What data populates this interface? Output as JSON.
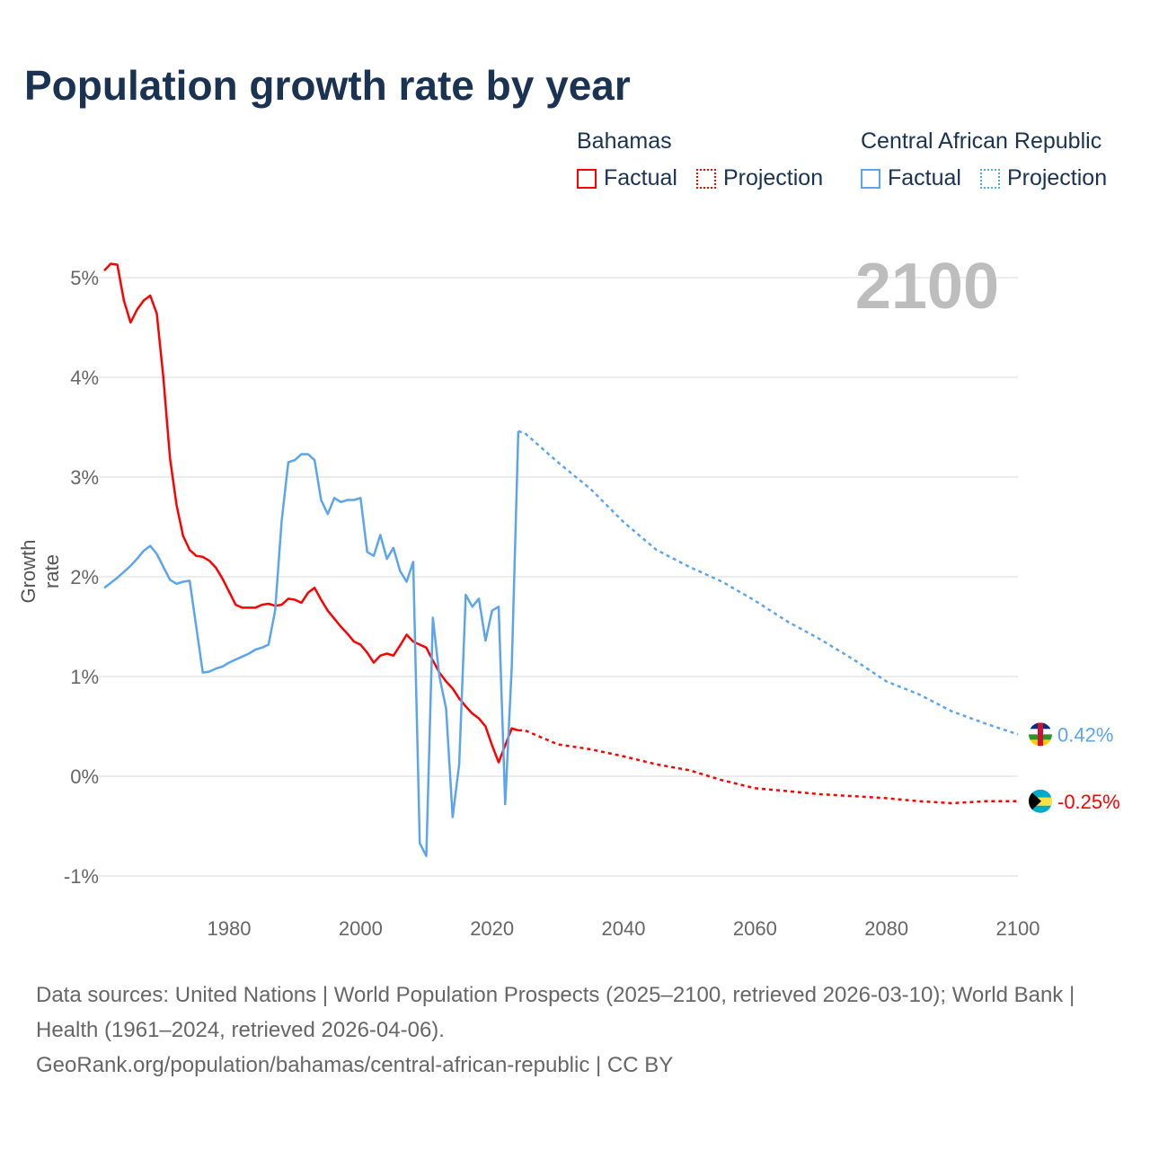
{
  "chart_data": {
    "type": "line",
    "title": "Population growth rate by year",
    "ylabel": "Growth rate",
    "xlabel": "",
    "xlim": [
      1961,
      2100
    ],
    "ylim": [
      -1,
      5
    ],
    "x_ticks": [
      1980,
      2000,
      2020,
      2040,
      2060,
      2080,
      2100
    ],
    "x_tick_labels": [
      "1980",
      "2000",
      "2020",
      "2040",
      "2060",
      "2080",
      "2100"
    ],
    "y_ticks": [
      -1,
      0,
      1,
      2,
      3,
      4,
      5
    ],
    "y_tick_labels": [
      "-1%",
      "0%",
      "1%",
      "2%",
      "3%",
      "4%",
      "5%"
    ],
    "grid": true,
    "current_year": "2100",
    "series": [
      {
        "name": "Bahamas",
        "color": "#ff0000",
        "end_label": "-0.25%",
        "factual": {
          "x": [
            1961,
            1962,
            1963,
            1964,
            1965,
            1966,
            1967,
            1968,
            1969,
            1970,
            1971,
            1972,
            1973,
            1974,
            1975,
            1976,
            1977,
            1978,
            1979,
            1980,
            1981,
            1982,
            1983,
            1984,
            1985,
            1986,
            1987,
            1988,
            1989,
            1990,
            1991,
            1992,
            1993,
            1994,
            1995,
            1996,
            1997,
            1998,
            1999,
            2000,
            2001,
            2002,
            2003,
            2004,
            2005,
            2006,
            2007,
            2008,
            2009,
            2010,
            2011,
            2012,
            2013,
            2014,
            2015,
            2016,
            2017,
            2018,
            2019,
            2020,
            2021,
            2022,
            2023,
            2024
          ],
          "y": [
            5.07,
            5.14,
            5.13,
            4.77,
            4.55,
            4.68,
            4.77,
            4.82,
            4.64,
            4.0,
            3.19,
            2.72,
            2.41,
            2.27,
            2.21,
            2.2,
            2.16,
            2.09,
            1.98,
            1.85,
            1.72,
            1.69,
            1.69,
            1.69,
            1.72,
            1.73,
            1.71,
            1.72,
            1.78,
            1.77,
            1.74,
            1.84,
            1.89,
            1.77,
            1.66,
            1.58,
            1.5,
            1.43,
            1.35,
            1.32,
            1.24,
            1.14,
            1.21,
            1.23,
            1.21,
            1.31,
            1.42,
            1.35,
            1.32,
            1.29,
            1.16,
            1.04,
            0.95,
            0.88,
            0.78,
            0.7,
            0.63,
            0.58,
            0.5,
            0.31,
            0.14,
            0.31,
            0.48,
            0.46
          ]
        },
        "projection": {
          "x": [
            2024,
            2025,
            2030,
            2035,
            2040,
            2045,
            2050,
            2055,
            2060,
            2065,
            2070,
            2075,
            2080,
            2085,
            2090,
            2095,
            2100
          ],
          "y": [
            0.46,
            0.46,
            0.32,
            0.27,
            0.2,
            0.12,
            0.06,
            -0.04,
            -0.12,
            -0.15,
            -0.18,
            -0.2,
            -0.22,
            -0.25,
            -0.27,
            -0.25,
            -0.25
          ]
        }
      },
      {
        "name": "Central African Republic",
        "color": "#5ba4ee",
        "end_label": "0.42%",
        "factual": {
          "x": [
            1961,
            1962,
            1963,
            1964,
            1965,
            1966,
            1967,
            1968,
            1969,
            1970,
            1971,
            1972,
            1973,
            1974,
            1975,
            1976,
            1977,
            1978,
            1979,
            1980,
            1981,
            1982,
            1983,
            1984,
            1985,
            1986,
            1987,
            1988,
            1989,
            1990,
            1991,
            1992,
            1993,
            1994,
            1995,
            1996,
            1997,
            1998,
            1999,
            2000,
            2001,
            2002,
            2003,
            2004,
            2005,
            2006,
            2007,
            2008,
            2009,
            2010,
            2011,
            2012,
            2013,
            2014,
            2015,
            2016,
            2017,
            2018,
            2019,
            2020,
            2021,
            2022,
            2023,
            2024
          ],
          "y": [
            1.89,
            1.94,
            1.99,
            2.05,
            2.11,
            2.18,
            2.26,
            2.31,
            2.23,
            2.1,
            1.97,
            1.93,
            1.95,
            1.96,
            1.5,
            1.04,
            1.05,
            1.08,
            1.1,
            1.14,
            1.17,
            1.2,
            1.23,
            1.27,
            1.29,
            1.32,
            1.66,
            2.56,
            3.15,
            3.17,
            3.23,
            3.23,
            3.17,
            2.77,
            2.63,
            2.79,
            2.75,
            2.77,
            2.77,
            2.79,
            2.25,
            2.21,
            2.42,
            2.18,
            2.29,
            2.06,
            1.95,
            2.15,
            -0.67,
            -0.8,
            1.59,
            1.0,
            0.68,
            -0.41,
            0.12,
            1.82,
            1.7,
            1.78,
            1.36,
            1.66,
            1.7,
            -0.28,
            1.1,
            3.46
          ]
        },
        "projection": {
          "x": [
            2024,
            2025,
            2030,
            2035,
            2040,
            2045,
            2050,
            2055,
            2060,
            2065,
            2070,
            2075,
            2080,
            2085,
            2090,
            2095,
            2100
          ],
          "y": [
            3.46,
            3.44,
            3.15,
            2.88,
            2.55,
            2.27,
            2.1,
            1.95,
            1.76,
            1.55,
            1.37,
            1.17,
            0.95,
            0.82,
            0.65,
            0.53,
            0.42
          ]
        }
      }
    ]
  },
  "legend": {
    "factual_label": "Factual",
    "projection_label": "Projection"
  },
  "footer": {
    "sources": "Data sources: United Nations | World Population Prospects (2025–2100, retrieved 2026-03-10); World Bank | Health (1961–2024, retrieved 2026-04-06).",
    "link": "GeoRank.org/population/bahamas/central-african-republic | CC BY"
  }
}
